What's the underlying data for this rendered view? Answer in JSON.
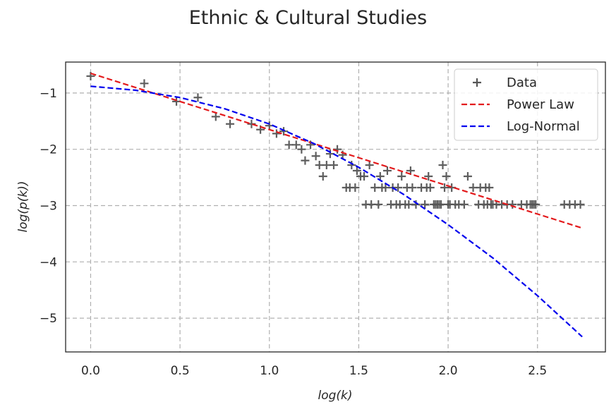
{
  "chart_data": {
    "type": "scatter",
    "title": "Ethnic & Cultural Studies",
    "xlabel": "log(k)",
    "ylabel": "log(p(k))",
    "xlim": [
      -0.14,
      2.88
    ],
    "ylim": [
      -5.6,
      -0.45
    ],
    "x_ticks": [
      0.0,
      0.5,
      1.0,
      1.5,
      2.0,
      2.5
    ],
    "x_tick_labels": [
      "0.0",
      "0.5",
      "1.0",
      "1.5",
      "2.0",
      "2.5"
    ],
    "y_ticks": [
      -1,
      -2,
      -3,
      -4,
      -5
    ],
    "y_tick_labels": [
      "−1",
      "−2",
      "−3",
      "−4",
      "−5"
    ],
    "grid": true,
    "legend_position": "top-right",
    "legend": [
      "Data",
      "Power Law",
      "Log-Normal"
    ],
    "series": [
      {
        "name": "Data",
        "type": "scatter",
        "marker": "+",
        "color": "#555555",
        "points": [
          [
            0.0,
            -0.7
          ],
          [
            0.3,
            -0.83
          ],
          [
            0.48,
            -1.15
          ],
          [
            0.6,
            -1.08
          ],
          [
            0.7,
            -1.42
          ],
          [
            0.78,
            -1.55
          ],
          [
            0.9,
            -1.55
          ],
          [
            0.95,
            -1.65
          ],
          [
            1.0,
            -1.58
          ],
          [
            1.04,
            -1.72
          ],
          [
            1.08,
            -1.68
          ],
          [
            1.11,
            -1.92
          ],
          [
            1.15,
            -1.92
          ],
          [
            1.18,
            -2.0
          ],
          [
            1.2,
            -2.2
          ],
          [
            1.23,
            -1.92
          ],
          [
            1.26,
            -2.12
          ],
          [
            1.28,
            -2.28
          ],
          [
            1.3,
            -2.48
          ],
          [
            1.32,
            -2.28
          ],
          [
            1.34,
            -2.08
          ],
          [
            1.36,
            -2.28
          ],
          [
            1.38,
            -2.0
          ],
          [
            1.41,
            -2.1
          ],
          [
            1.43,
            -2.68
          ],
          [
            1.45,
            -2.68
          ],
          [
            1.46,
            -2.28
          ],
          [
            1.48,
            -2.68
          ],
          [
            1.49,
            -2.38
          ],
          [
            1.51,
            -2.48
          ],
          [
            1.53,
            -2.48
          ],
          [
            1.54,
            -2.98
          ],
          [
            1.56,
            -2.28
          ],
          [
            1.57,
            -2.98
          ],
          [
            1.59,
            -2.68
          ],
          [
            1.61,
            -2.98
          ],
          [
            1.62,
            -2.48
          ],
          [
            1.63,
            -2.68
          ],
          [
            1.65,
            -2.68
          ],
          [
            1.66,
            -2.38
          ],
          [
            1.68,
            -2.98
          ],
          [
            1.69,
            -2.68
          ],
          [
            1.71,
            -2.98
          ],
          [
            1.72,
            -2.68
          ],
          [
            1.73,
            -2.98
          ],
          [
            1.74,
            -2.48
          ],
          [
            1.76,
            -2.98
          ],
          [
            1.77,
            -2.68
          ],
          [
            1.78,
            -2.98
          ],
          [
            1.79,
            -2.38
          ],
          [
            1.8,
            -2.68
          ],
          [
            1.82,
            -2.98
          ],
          [
            1.85,
            -2.68
          ],
          [
            1.87,
            -2.98
          ],
          [
            1.88,
            -2.68
          ],
          [
            1.89,
            -2.48
          ],
          [
            1.9,
            -2.68
          ],
          [
            1.92,
            -2.98
          ],
          [
            1.93,
            -2.98
          ],
          [
            1.94,
            -2.98
          ],
          [
            1.95,
            -2.98
          ],
          [
            1.96,
            -2.98
          ],
          [
            1.97,
            -2.28
          ],
          [
            1.98,
            -2.68
          ],
          [
            1.99,
            -2.48
          ],
          [
            2.0,
            -2.98
          ],
          [
            2.01,
            -2.98
          ],
          [
            2.02,
            -2.68
          ],
          [
            2.04,
            -2.98
          ],
          [
            2.06,
            -2.98
          ],
          [
            2.09,
            -2.98
          ],
          [
            2.11,
            -2.48
          ],
          [
            2.14,
            -2.68
          ],
          [
            2.17,
            -2.98
          ],
          [
            2.18,
            -2.68
          ],
          [
            2.2,
            -2.98
          ],
          [
            2.21,
            -2.68
          ],
          [
            2.22,
            -2.98
          ],
          [
            2.23,
            -2.68
          ],
          [
            2.24,
            -2.98
          ],
          [
            2.25,
            -2.98
          ],
          [
            2.27,
            -2.98
          ],
          [
            2.3,
            -2.98
          ],
          [
            2.33,
            -2.98
          ],
          [
            2.36,
            -2.98
          ],
          [
            2.41,
            -2.98
          ],
          [
            2.44,
            -2.98
          ],
          [
            2.46,
            -2.98
          ],
          [
            2.47,
            -2.98
          ],
          [
            2.48,
            -2.98
          ],
          [
            2.49,
            -2.98
          ],
          [
            2.65,
            -2.98
          ],
          [
            2.68,
            -2.98
          ],
          [
            2.71,
            -2.98
          ],
          [
            2.74,
            -2.98
          ]
        ]
      },
      {
        "name": "Power Law",
        "type": "line",
        "dashed": true,
        "color": "#e31a1c",
        "points": [
          [
            0.0,
            -0.65
          ],
          [
            2.75,
            -3.4
          ]
        ]
      },
      {
        "name": "Log-Normal",
        "type": "line",
        "dashed": true,
        "color": "#0000ee",
        "points": [
          [
            0.0,
            -0.88
          ],
          [
            0.25,
            -0.95
          ],
          [
            0.5,
            -1.08
          ],
          [
            0.75,
            -1.28
          ],
          [
            1.0,
            -1.55
          ],
          [
            1.25,
            -1.9
          ],
          [
            1.5,
            -2.32
          ],
          [
            1.75,
            -2.8
          ],
          [
            2.0,
            -3.34
          ],
          [
            2.25,
            -3.93
          ],
          [
            2.5,
            -4.6
          ],
          [
            2.75,
            -5.33
          ]
        ]
      }
    ]
  }
}
